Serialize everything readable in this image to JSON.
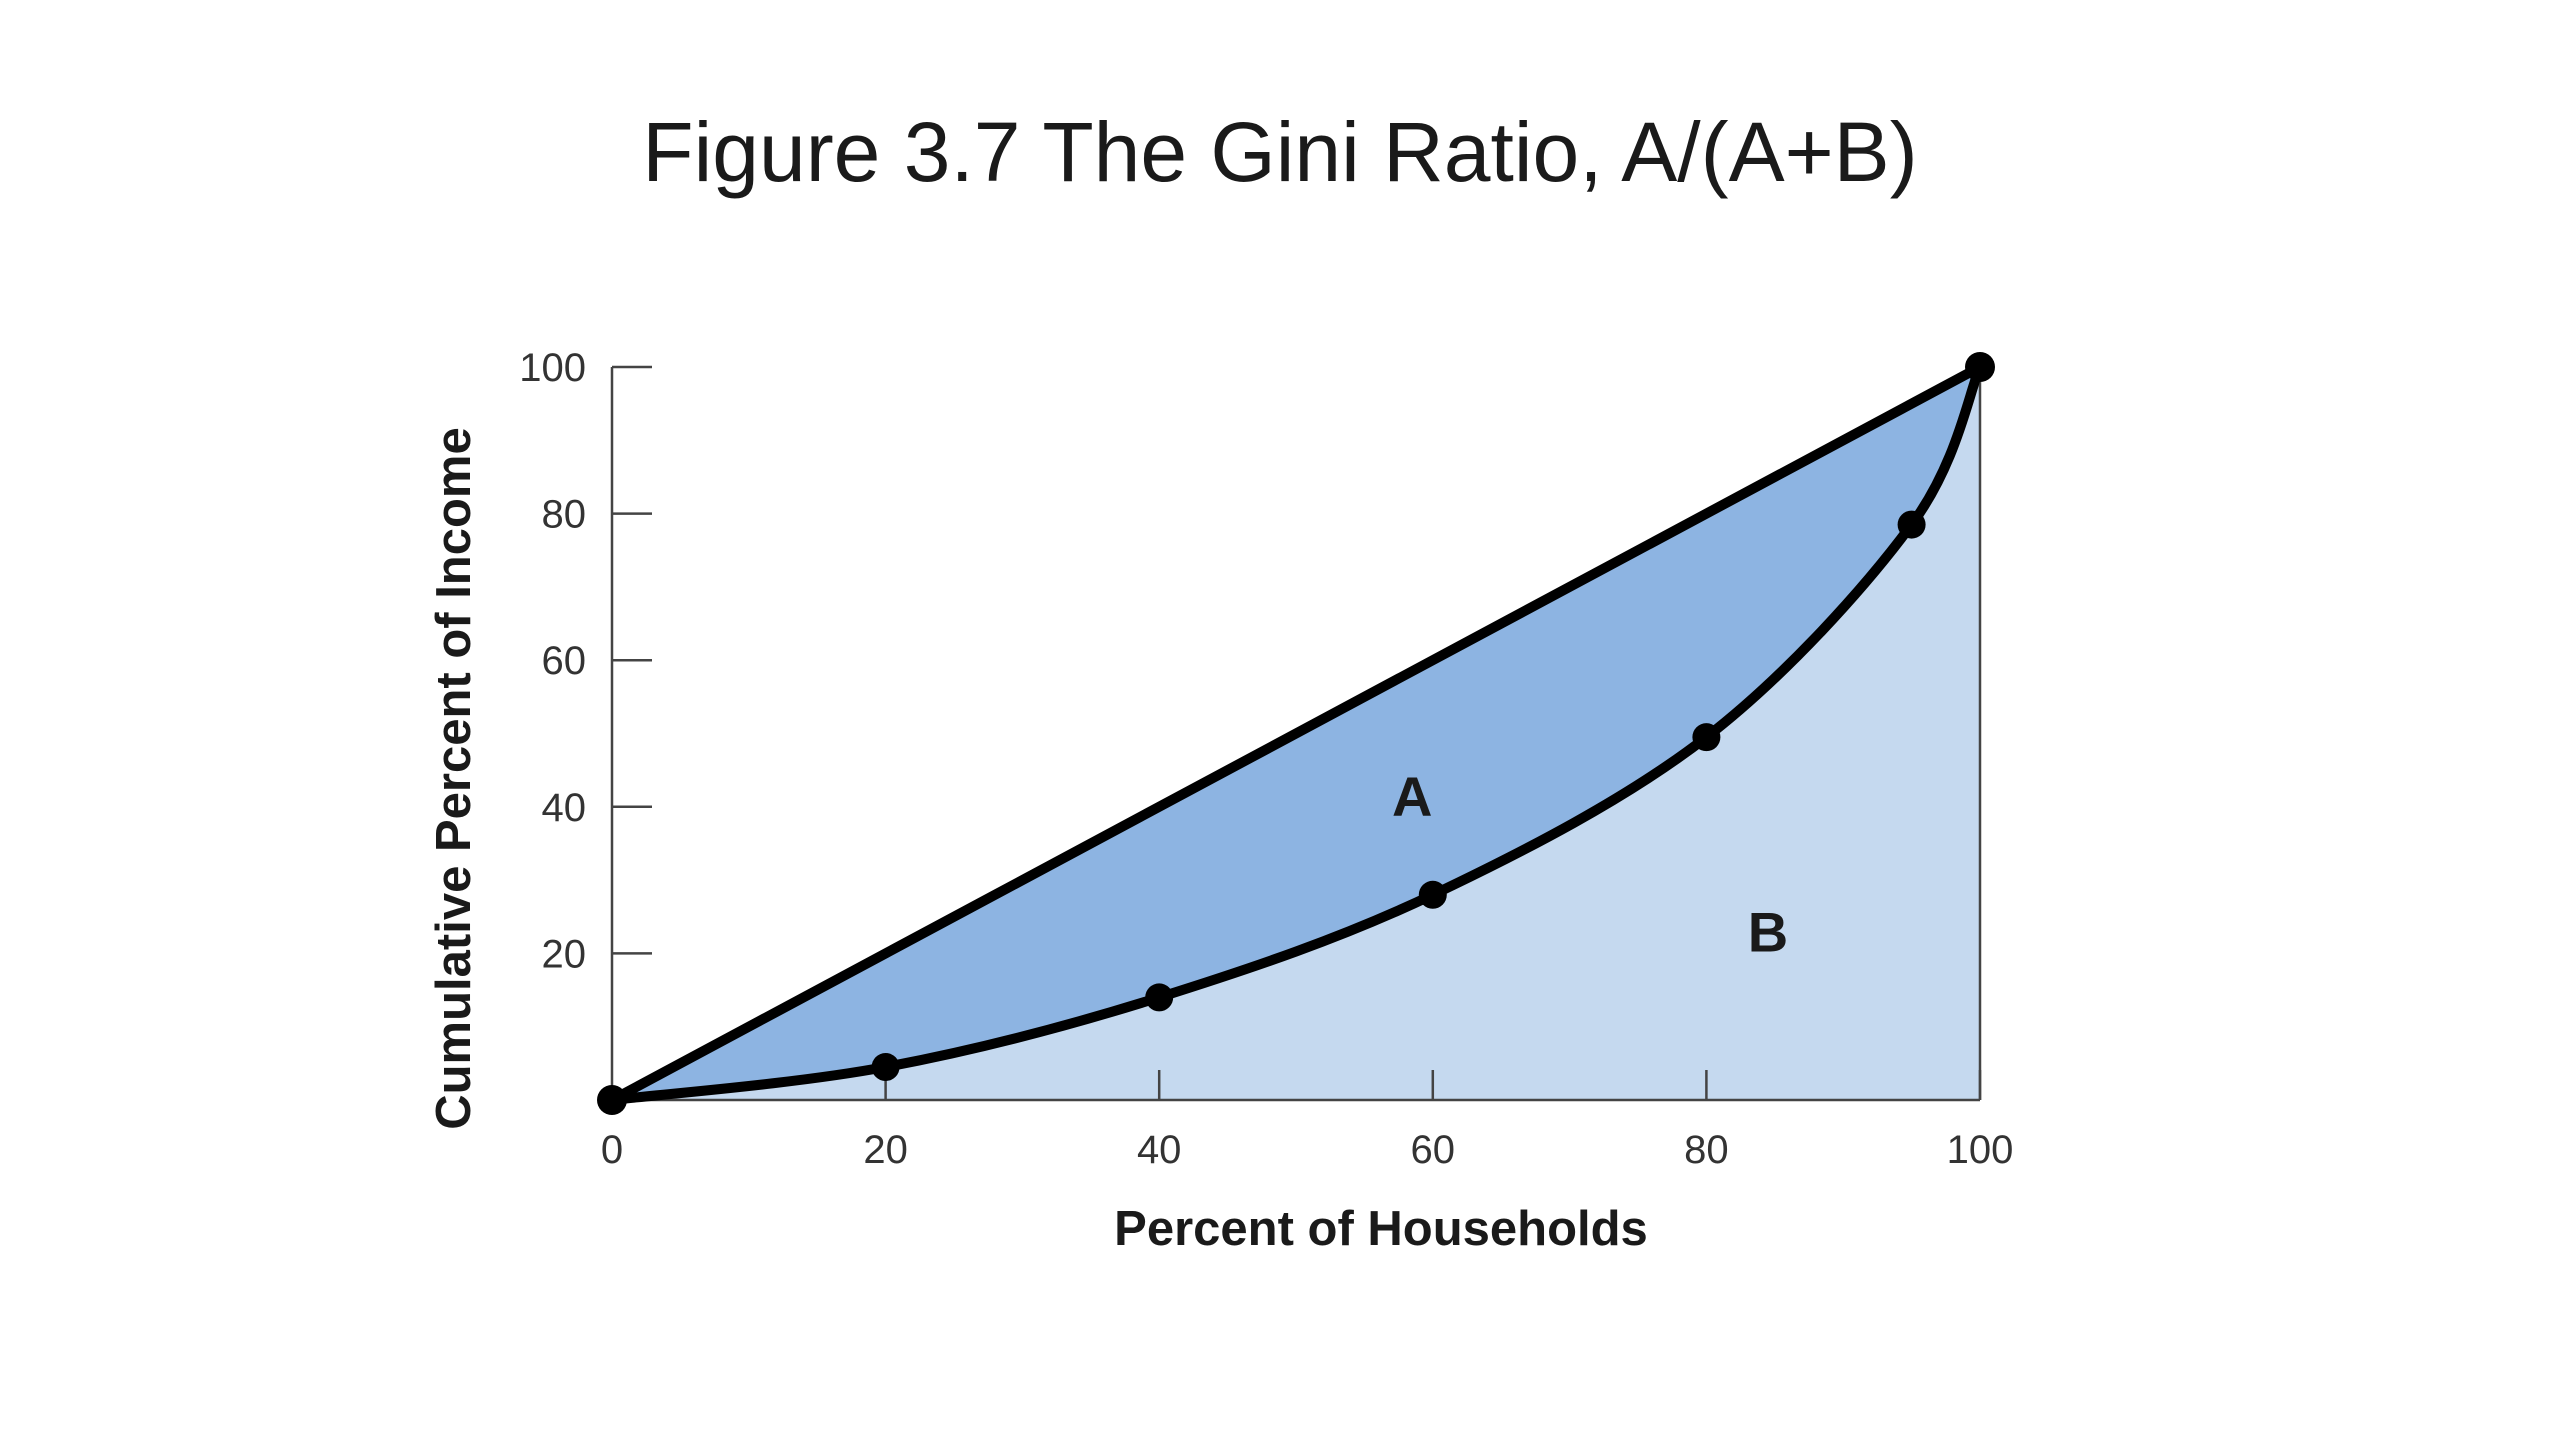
{
  "slide": {
    "title": "Figure 3.7 The Gini Ratio, A/(A+B)"
  },
  "chart_data": {
    "type": "area",
    "xlabel": "Percent of Households",
    "ylabel": "Cumulative Percent of Income",
    "xlim": [
      0,
      100
    ],
    "ylim": [
      0,
      100
    ],
    "x_ticks": [
      "0",
      "20",
      "40",
      "60",
      "80",
      "100"
    ],
    "y_ticks": [
      "20",
      "40",
      "60",
      "80",
      "100"
    ],
    "grid": false,
    "legend": "none",
    "series": [
      {
        "role": "line of equality",
        "x": [
          0,
          100
        ],
        "y": [
          0,
          100
        ]
      },
      {
        "role": "lorenz curve",
        "x": [
          0,
          20,
          40,
          60,
          80,
          95,
          100
        ],
        "y": [
          0,
          4.5,
          14,
          28,
          49.5,
          78.5,
          100
        ]
      }
    ],
    "annotations": [
      {
        "text": "A",
        "x": 58.5,
        "y": 41.5
      },
      {
        "text": "B",
        "x": 84.5,
        "y": 23
      }
    ],
    "colors": {
      "area_a": "#8db4e2",
      "area_b": "#c5d9ef",
      "line": "#000000",
      "axis": "#444444"
    }
  }
}
